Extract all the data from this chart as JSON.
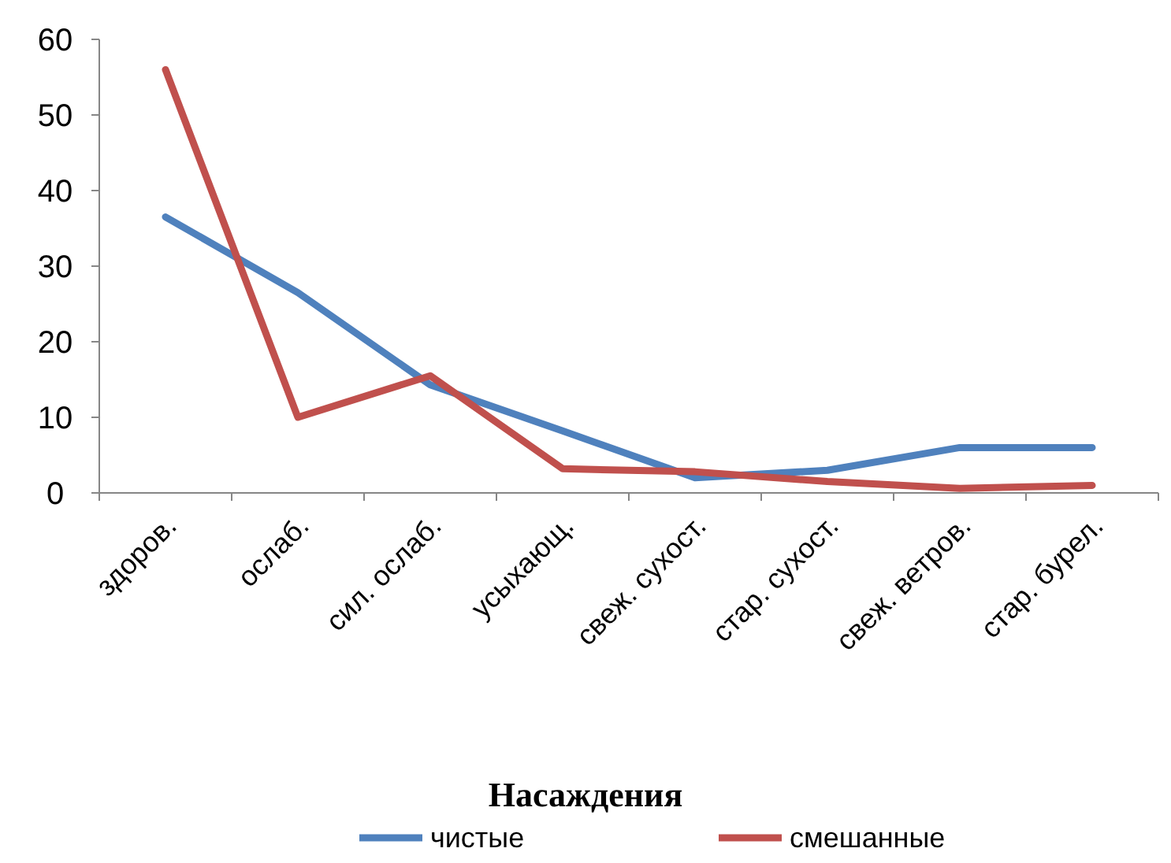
{
  "chart_data": {
    "type": "line",
    "xlabel": "Насаждения",
    "categories": [
      "здоров.",
      "ослаб.",
      "сил. ослаб.",
      "усыхающ.",
      "свеж. сухост.",
      "стар. сухост.",
      "свеж. ветров.",
      "стар. бурел."
    ],
    "series": [
      {
        "name": "чистые",
        "color": "#4f81bd",
        "values": [
          36.5,
          26.5,
          14.3,
          8.2,
          2,
          3,
          6,
          6
        ]
      },
      {
        "name": "смешанные",
        "color": "#c0504d",
        "values": [
          56,
          10,
          15.5,
          3.2,
          2.8,
          1.5,
          0.6,
          1
        ]
      }
    ],
    "ylim": [
      0,
      60
    ],
    "yticks": [
      0,
      10,
      20,
      30,
      40,
      50,
      60
    ],
    "grid": false,
    "legend": "bottom",
    "line_style": "solid"
  }
}
